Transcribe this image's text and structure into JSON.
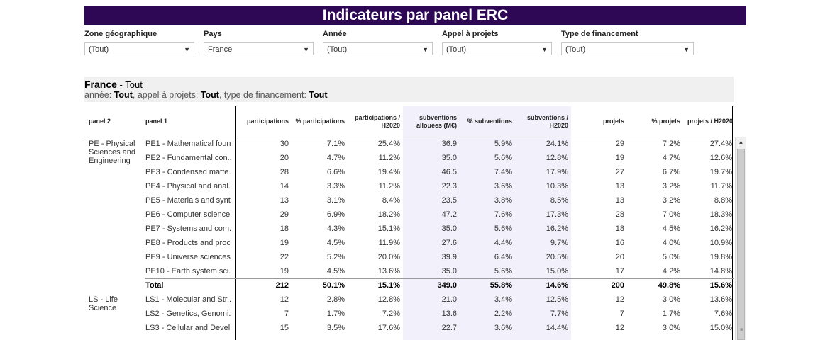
{
  "title": "Indicateurs par panel ERC",
  "filters": [
    {
      "label": "Zone géographique",
      "value": "(Tout)"
    },
    {
      "label": "Pays",
      "value": "France"
    },
    {
      "label": "Année",
      "value": "(Tout)"
    },
    {
      "label": "Appel à projets",
      "value": "(Tout)"
    },
    {
      "label": "Type de financement",
      "value": "(Tout)"
    }
  ],
  "subheader": {
    "country": "France",
    "suffix": " - Tout",
    "l2a": "année: ",
    "l2b": "Tout",
    "l2c": ", appel à projets: ",
    "l2d": "Tout",
    "l2e": ", type de financement: ",
    "l2f": "Tout"
  },
  "columns": {
    "panel2": "panel 2",
    "panel1": "panel 1",
    "participations": "participations",
    "pct_participations": "% participations",
    "participations_h2020": "participations / H2020",
    "subventions": "subventions allouées (M€)",
    "pct_subventions": "% subventions",
    "subventions_h2020": "subventions / H2020",
    "projets": "projets",
    "pct_projets": "% projets",
    "projets_h2020": "projets / H2020"
  },
  "groups": [
    {
      "label": "PE - Physical Sciences and Engineering",
      "rows": [
        [
          "PE1 - Mathematical foun...",
          "30",
          "7.1%",
          "25.4%",
          "36.9",
          "5.9%",
          "24.1%",
          "29",
          "7.2%",
          "27.4%"
        ],
        [
          "PE2 - Fundamental con...",
          "20",
          "4.7%",
          "11.2%",
          "35.0",
          "5.6%",
          "12.8%",
          "19",
          "4.7%",
          "12.6%"
        ],
        [
          "PE3 - Condensed matte...",
          "28",
          "6.6%",
          "19.4%",
          "46.5",
          "7.4%",
          "17.9%",
          "27",
          "6.7%",
          "19.7%"
        ],
        [
          "PE4 - Physical and anal...",
          "14",
          "3.3%",
          "11.2%",
          "22.3",
          "3.6%",
          "10.3%",
          "13",
          "3.2%",
          "11.7%"
        ],
        [
          "PE5 - Materials and synt...",
          "13",
          "3.1%",
          "8.4%",
          "23.5",
          "3.8%",
          "8.5%",
          "13",
          "3.2%",
          "8.8%"
        ],
        [
          "PE6 - Computer science...",
          "29",
          "6.9%",
          "18.2%",
          "47.2",
          "7.6%",
          "17.3%",
          "28",
          "7.0%",
          "18.3%"
        ],
        [
          "PE7 - Systems and com...",
          "18",
          "4.3%",
          "15.1%",
          "35.0",
          "5.6%",
          "16.2%",
          "18",
          "4.5%",
          "16.2%"
        ],
        [
          "PE8 - Products and proc...",
          "19",
          "4.5%",
          "11.9%",
          "27.6",
          "4.4%",
          "9.7%",
          "16",
          "4.0%",
          "10.9%"
        ],
        [
          "PE9 - Universe sciences...",
          "22",
          "5.2%",
          "20.0%",
          "39.9",
          "6.4%",
          "20.5%",
          "20",
          "5.0%",
          "19.8%"
        ],
        [
          "PE10 - Earth system sci...",
          "19",
          "4.5%",
          "13.6%",
          "35.0",
          "5.6%",
          "15.0%",
          "17",
          "4.2%",
          "14.8%"
        ]
      ],
      "total": [
        "Total",
        "212",
        "50.1%",
        "15.1%",
        "349.0",
        "55.8%",
        "14.6%",
        "200",
        "49.8%",
        "15.6%"
      ]
    },
    {
      "label": "LS - Life Science",
      "rows": [
        [
          "LS1 - Molecular and Str...",
          "12",
          "2.8%",
          "12.8%",
          "21.0",
          "3.4%",
          "12.5%",
          "12",
          "3.0%",
          "13.6%"
        ],
        [
          "LS2 - Genetics, Genomi...",
          "7",
          "1.7%",
          "7.2%",
          "13.6",
          "2.2%",
          "7.7%",
          "7",
          "1.7%",
          "7.6%"
        ],
        [
          "LS3 - Cellular and Devel...",
          "15",
          "3.5%",
          "17.6%",
          "22.7",
          "3.6%",
          "14.4%",
          "12",
          "3.0%",
          "15.0%"
        ]
      ]
    }
  ]
}
